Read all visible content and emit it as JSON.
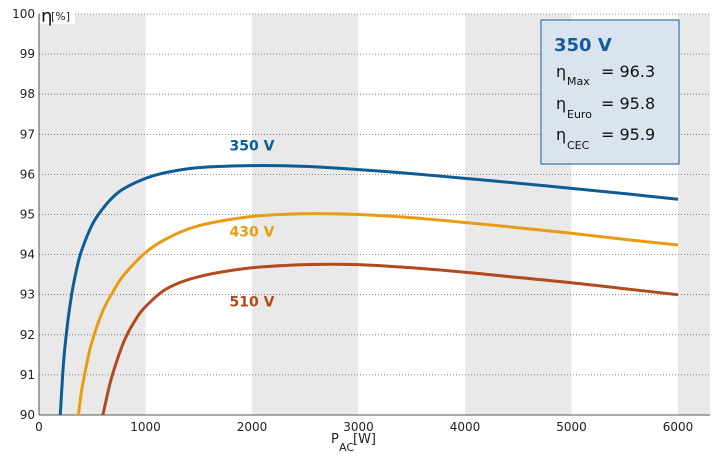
{
  "chart_data": {
    "type": "line",
    "ylabel": "η",
    "yunit": "[%]",
    "xlabel": "P",
    "xlabel_sub": "AC",
    "xunit": "[W]",
    "xlim": [
      0,
      6300
    ],
    "ylim": [
      90,
      100
    ],
    "xticks": [
      0,
      1000,
      2000,
      3000,
      4000,
      5000,
      6000
    ],
    "yticks": [
      90,
      91,
      92,
      93,
      94,
      95,
      96,
      97,
      98,
      99,
      100
    ],
    "grid": "horizontal dotted lines, alternating grey vertical bands",
    "series": [
      {
        "name": "350 V",
        "color": "#0d5c93",
        "x": [
          200,
          230,
          260,
          300,
          350,
          400,
          500,
          600,
          700,
          800,
          1000,
          1200,
          1500,
          2000,
          2500,
          3000,
          3500,
          4000,
          4500,
          5000,
          5500,
          6000
        ],
        "y": [
          90.0,
          91.3,
          92.1,
          92.9,
          93.6,
          94.1,
          94.75,
          95.15,
          95.45,
          95.65,
          95.9,
          96.05,
          96.17,
          96.22,
          96.2,
          96.12,
          96.02,
          95.9,
          95.78,
          95.65,
          95.52,
          95.38
        ]
      },
      {
        "name": "430 V",
        "color": "#e99c12",
        "x": [
          370,
          400,
          450,
          500,
          600,
          700,
          800,
          1000,
          1200,
          1500,
          2000,
          2500,
          3000,
          3500,
          4000,
          4500,
          5000,
          5500,
          6000
        ],
        "y": [
          90.0,
          90.6,
          91.3,
          91.85,
          92.6,
          93.1,
          93.5,
          94.05,
          94.4,
          94.72,
          94.95,
          95.02,
          95.0,
          94.92,
          94.8,
          94.67,
          94.53,
          94.38,
          94.24
        ]
      },
      {
        "name": "510 V",
        "color": "#b04a1f",
        "x": [
          600,
          650,
          700,
          800,
          900,
          1000,
          1200,
          1500,
          2000,
          2500,
          3000,
          3500,
          4000,
          4500,
          5000,
          5500,
          6000
        ],
        "y": [
          90.0,
          90.6,
          91.1,
          91.85,
          92.35,
          92.7,
          93.15,
          93.45,
          93.67,
          93.75,
          93.75,
          93.67,
          93.56,
          93.43,
          93.3,
          93.15,
          93.0
        ]
      }
    ],
    "series_labels": [
      {
        "text": "350 V",
        "color": "#0d5c93",
        "x": 2000,
        "y": 96.6
      },
      {
        "text": "430 V",
        "color": "#e99c12",
        "x": 2000,
        "y": 94.45
      },
      {
        "text": "510 V",
        "color": "#b04a1f",
        "x": 2000,
        "y": 92.7
      }
    ],
    "info_box": {
      "title": "350 V",
      "rows": [
        {
          "symbol": "η",
          "sub": "Max",
          "value": "= 96.3"
        },
        {
          "symbol": "η",
          "sub": "Euro",
          "value": "= 95.8"
        },
        {
          "symbol": "η",
          "sub": "CEC",
          "value": "= 95.9"
        }
      ]
    }
  }
}
